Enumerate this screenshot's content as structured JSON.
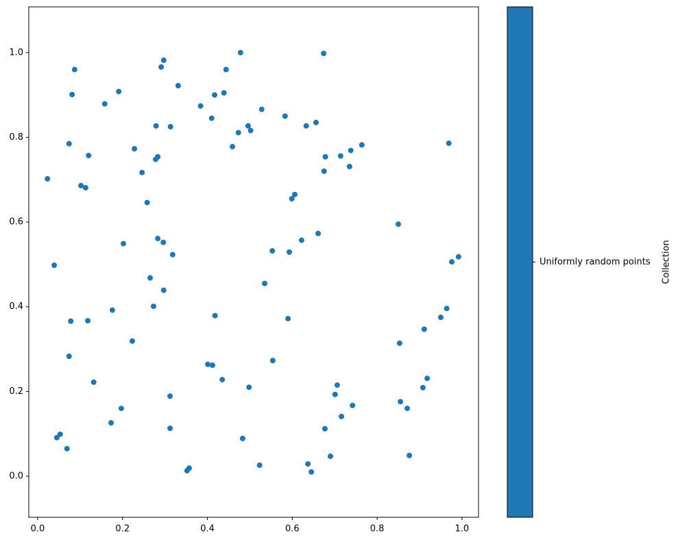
{
  "chart_data": {
    "type": "scatter",
    "series": [
      {
        "name": "Uniformly random points",
        "color": "#1f77b4",
        "x": [
          0.023,
          0.039,
          0.045,
          0.053,
          0.069,
          0.074,
          0.074,
          0.078,
          0.081,
          0.087,
          0.102,
          0.113,
          0.12,
          0.118,
          0.132,
          0.158,
          0.173,
          0.176,
          0.191,
          0.197,
          0.202,
          0.223,
          0.228,
          0.246,
          0.258,
          0.265,
          0.273,
          0.278,
          0.279,
          0.283,
          0.283,
          0.291,
          0.296,
          0.297,
          0.297,
          0.312,
          0.312,
          0.313,
          0.318,
          0.331,
          0.352,
          0.357,
          0.384,
          0.401,
          0.41,
          0.412,
          0.417,
          0.418,
          0.435,
          0.439,
          0.444,
          0.459,
          0.473,
          0.478,
          0.483,
          0.496,
          0.498,
          0.502,
          0.523,
          0.528,
          0.535,
          0.553,
          0.554,
          0.583,
          0.59,
          0.593,
          0.599,
          0.606,
          0.622,
          0.633,
          0.637,
          0.645,
          0.656,
          0.661,
          0.674,
          0.675,
          0.677,
          0.678,
          0.69,
          0.701,
          0.706,
          0.714,
          0.716,
          0.735,
          0.738,
          0.742,
          0.764,
          0.85,
          0.853,
          0.855,
          0.871,
          0.876,
          0.908,
          0.911,
          0.918,
          0.95,
          0.964,
          0.969,
          0.976,
          0.992
        ],
        "y": [
          0.702,
          0.498,
          0.091,
          0.099,
          0.065,
          0.785,
          0.283,
          0.366,
          0.901,
          0.96,
          0.686,
          0.681,
          0.757,
          0.367,
          0.222,
          0.879,
          0.126,
          0.392,
          0.908,
          0.16,
          0.549,
          0.319,
          0.773,
          0.717,
          0.646,
          0.468,
          0.401,
          0.748,
          0.827,
          0.754,
          0.561,
          0.966,
          0.552,
          0.982,
          0.439,
          0.189,
          0.113,
          0.825,
          0.523,
          0.922,
          0.013,
          0.019,
          0.874,
          0.264,
          0.845,
          0.262,
          0.9,
          0.379,
          0.228,
          0.905,
          0.96,
          0.778,
          0.811,
          1.0,
          0.089,
          0.827,
          0.21,
          0.816,
          0.026,
          0.866,
          0.455,
          0.532,
          0.273,
          0.85,
          0.372,
          0.529,
          0.655,
          0.665,
          0.557,
          0.827,
          0.029,
          0.01,
          0.835,
          0.573,
          0.998,
          0.72,
          0.112,
          0.754,
          0.047,
          0.193,
          0.215,
          0.756,
          0.141,
          0.731,
          0.769,
          0.167,
          0.782,
          0.595,
          0.314,
          0.176,
          0.16,
          0.049,
          0.209,
          0.347,
          0.231,
          0.375,
          0.396,
          0.786,
          0.506,
          0.518
        ]
      }
    ],
    "xlim": [
      -0.021,
      1.039
    ],
    "ylim": [
      -0.097,
      1.108
    ],
    "xticks": [
      {
        "value": 0,
        "label": "0.0"
      },
      0.2,
      0.4,
      0.6,
      0.8,
      {
        "value": 1,
        "label": "1.0"
      }
    ],
    "yticks": [
      {
        "value": 0,
        "label": "0.0"
      },
      0.2,
      0.4,
      0.6,
      0.8,
      {
        "value": 1,
        "label": "1.0"
      }
    ],
    "colorbar_label": "Collection"
  }
}
